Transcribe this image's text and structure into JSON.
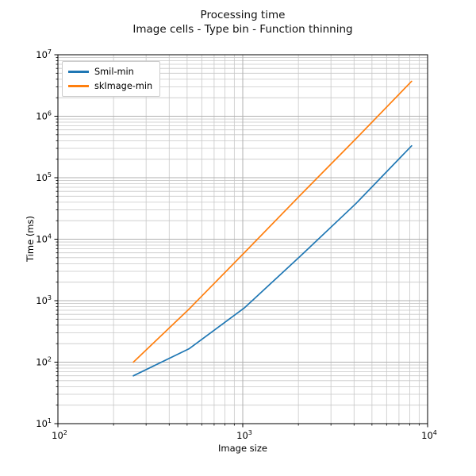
{
  "title": {
    "line1": "Processing time",
    "line2": "Image cells - Type bin - Function thinning"
  },
  "axes": {
    "xlabel": "Image size",
    "ylabel": "Time (ms)",
    "x_range_log": [
      2,
      4
    ],
    "y_range_log": [
      1,
      7
    ],
    "x_tick_exponents": [
      2,
      3,
      4
    ],
    "y_tick_exponents": [
      1,
      2,
      3,
      4,
      5,
      6,
      7
    ],
    "tick_label_base": "10"
  },
  "colors": {
    "series_blue": "#1f77b4",
    "series_orange": "#ff7f0e",
    "grid_major": "#b0b0b0",
    "grid_minor": "#c8c8c8",
    "frame": "#000000",
    "background": "#ffffff"
  },
  "chart_data": {
    "type": "line",
    "title": "Processing time",
    "subtitle": "Image cells - Type bin - Function thinning",
    "xlabel": "Image size",
    "ylabel": "Time (ms)",
    "xscale": "log",
    "yscale": "log",
    "xlim": [
      100,
      10000
    ],
    "ylim": [
      10,
      10000000
    ],
    "grid": "both",
    "legend_position": "upper left",
    "x": [
      256,
      512,
      1024,
      2048,
      4096,
      8192
    ],
    "series": [
      {
        "name": "Smil-min",
        "color": "#1f77b4",
        "values": [
          60,
          165,
          770,
          5300,
          38000,
          330000
        ]
      },
      {
        "name": "skImage-min",
        "color": "#ff7f0e",
        "values": [
          100,
          730,
          6100,
          52000,
          430000,
          3700000
        ]
      }
    ]
  }
}
